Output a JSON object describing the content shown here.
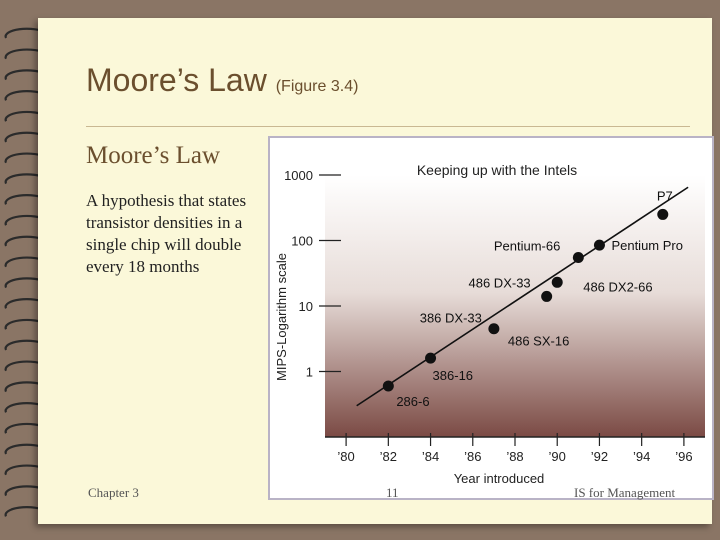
{
  "slide": {
    "title": "Moore’s Law",
    "title_suffix": "(Figure 3.4)",
    "subheading": "Moore’s Law",
    "body_lines": [
      "A hypothesis that states",
      "transistor densities in a",
      "single chip will double",
      "every 18 months"
    ],
    "footer_left": "Chapter 3",
    "footer_center": "11",
    "footer_right": "IS for Management"
  },
  "chart_data": {
    "type": "scatter",
    "title": "Keeping up with the Intels",
    "xlabel": "Year introduced",
    "ylabel": "MIPS-Logarithm scale",
    "y_scale": "log",
    "ylim": [
      0.1,
      1000
    ],
    "xlim": [
      1979,
      1997
    ],
    "x_ticks": [
      "’80",
      "’82",
      "’84",
      "’86",
      "’88",
      "’90",
      "’92",
      "’94",
      "’96"
    ],
    "y_ticks": [
      "1",
      "10",
      "100",
      "1000"
    ],
    "trend_line": true,
    "points": [
      {
        "label": "286-6",
        "x": 1982,
        "y": 0.6
      },
      {
        "label": "386-16",
        "x": 1984,
        "y": 1.6
      },
      {
        "label": "386 DX-33",
        "x": 1987,
        "y": 4.5
      },
      {
        "label": "486 SX-16",
        "x": 1987,
        "y": 4.5
      },
      {
        "label": "486 DX-33",
        "x": 1989.5,
        "y": 14
      },
      {
        "label": "486 DX2-66",
        "x": 1990,
        "y": 23
      },
      {
        "label": "Pentium-66",
        "x": 1991,
        "y": 55
      },
      {
        "label": "Pentium Pro",
        "x": 1992,
        "y": 85
      },
      {
        "label": "P7",
        "x": 1995,
        "y": 250
      }
    ]
  }
}
